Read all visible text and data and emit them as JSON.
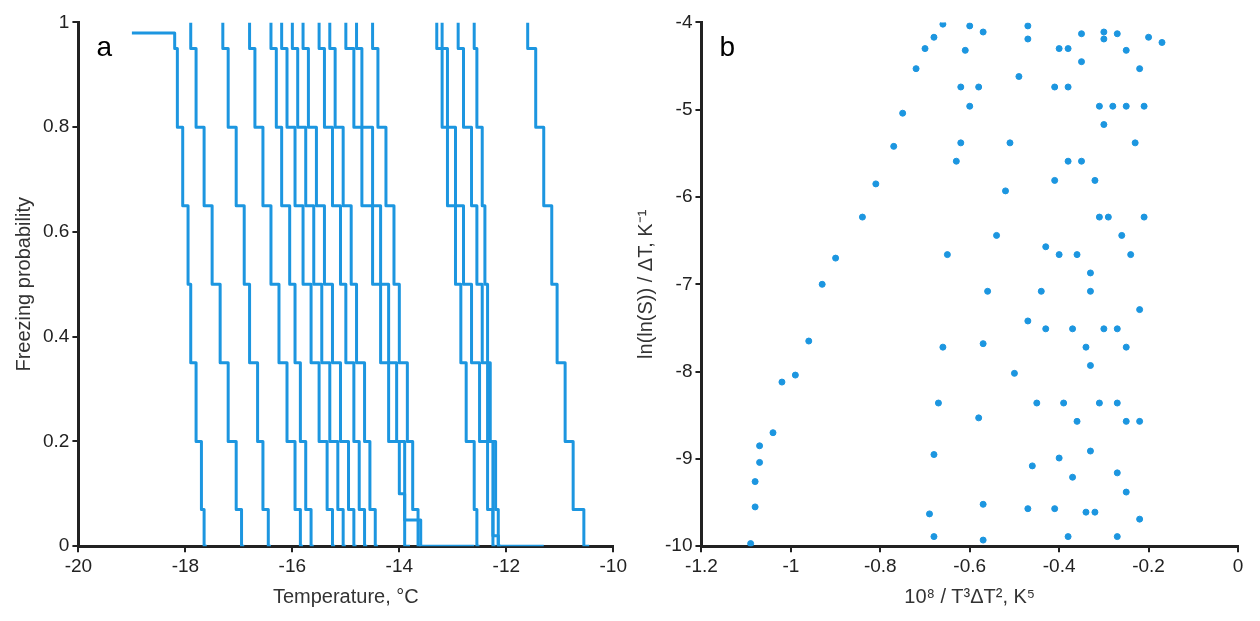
{
  "chart_data": [
    {
      "type": "step",
      "xlabel": "Temperature, °C",
      "ylabel": "Freezing probability",
      "annotations": [
        "a"
      ],
      "xlim": [
        -20,
        -10
      ],
      "xticks": [
        -20,
        -18,
        -16,
        -14,
        -12,
        -10
      ],
      "ylim": [
        0,
        1
      ],
      "yticks": [
        0,
        0.2,
        0.4,
        0.6,
        0.8,
        1
      ],
      "series": [
        {
          "color": "#1c96e0",
          "x": [
            -19,
            -18.2,
            -18.15,
            -18.05,
            -17.95,
            -17.9,
            -17.8,
            -17.7,
            -17.65,
            -17.6
          ],
          "values": [
            0.98,
            0.98,
            0.95,
            0.8,
            0.65,
            0.5,
            0.35,
            0.2,
            0.07,
            0
          ]
        },
        {
          "color": "#1c96e0",
          "x": [
            -17.9,
            -17.8,
            -17.65,
            -17.5,
            -17.35,
            -17.2,
            -17.05,
            -16.95,
            -16.9
          ],
          "values": [
            1,
            0.95,
            0.8,
            0.65,
            0.5,
            0.35,
            0.2,
            0.07,
            0
          ]
        },
        {
          "color": "#1c96e0",
          "x": [
            -17.3,
            -17.2,
            -17.05,
            -16.9,
            -16.8,
            -16.65,
            -16.55,
            -16.45,
            -16.4
          ],
          "values": [
            1,
            0.95,
            0.8,
            0.65,
            0.5,
            0.35,
            0.2,
            0.07,
            0
          ]
        },
        {
          "color": "#1c96e0",
          "x": [
            -16.8,
            -16.7,
            -16.55,
            -16.4,
            -16.25,
            -16.1,
            -15.95,
            -15.85,
            -15.8
          ],
          "values": [
            1,
            0.95,
            0.8,
            0.65,
            0.5,
            0.35,
            0.2,
            0.07,
            0
          ]
        },
        {
          "color": "#1c96e0",
          "x": [
            -16.4,
            -16.3,
            -16.2,
            -16.05,
            -15.95,
            -15.85,
            -15.75,
            -15.65,
            -15.6
          ],
          "values": [
            1,
            0.95,
            0.8,
            0.65,
            0.5,
            0.35,
            0.2,
            0.07,
            0
          ]
        },
        {
          "color": "#1c96e0",
          "x": [
            -16.2,
            -16.1,
            -15.95,
            -15.8,
            -15.65,
            -15.5,
            -15.35,
            -15.25,
            -15.2
          ],
          "values": [
            1,
            0.95,
            0.8,
            0.65,
            0.5,
            0.35,
            0.2,
            0.07,
            0
          ]
        },
        {
          "color": "#1c96e0",
          "x": [
            -16.0,
            -15.9,
            -15.75,
            -15.6,
            -15.45,
            -15.3,
            -15.15,
            -15.05,
            -15.0
          ],
          "values": [
            1,
            0.95,
            0.8,
            0.65,
            0.5,
            0.35,
            0.2,
            0.07,
            0
          ]
        },
        {
          "color": "#1c96e0",
          "x": [
            -15.8,
            -15.7,
            -15.55,
            -15.4,
            -15.25,
            -15.1,
            -14.95,
            -14.85,
            -14.8
          ],
          "values": [
            1,
            0.95,
            0.8,
            0.65,
            0.5,
            0.35,
            0.2,
            0.07,
            0
          ]
        },
        {
          "color": "#1c96e0",
          "x": [
            -15.5,
            -15.4,
            -15.25,
            -15.1,
            -15.0,
            -14.85,
            -14.75,
            -14.65,
            -14.6
          ],
          "values": [
            1,
            0.95,
            0.8,
            0.65,
            0.5,
            0.35,
            0.2,
            0.07,
            0
          ]
        },
        {
          "color": "#1c96e0",
          "x": [
            -15.3,
            -15.2,
            -15.05,
            -14.9,
            -14.8,
            -14.65,
            -14.55,
            -14.45,
            -14.4
          ],
          "values": [
            1,
            0.95,
            0.8,
            0.65,
            0.5,
            0.35,
            0.2,
            0.07,
            0
          ]
        },
        {
          "color": "#1c96e0",
          "x": [
            -15.0,
            -14.85,
            -14.7,
            -14.5,
            -14.35,
            -14.2,
            -14.0,
            -13.9,
            -13.8
          ],
          "values": [
            1,
            0.95,
            0.8,
            0.65,
            0.5,
            0.35,
            0.2,
            0.1,
            0
          ]
        },
        {
          "color": "#1c96e0",
          "x": [
            -14.8,
            -14.7,
            -14.5,
            -14.35,
            -14.2,
            -14.05,
            -13.9,
            -13.6,
            -12.6
          ],
          "values": [
            1,
            0.95,
            0.8,
            0.65,
            0.5,
            0.35,
            0.2,
            0.05,
            0
          ]
        },
        {
          "color": "#1c96e0",
          "x": [
            -14.5,
            -14.4,
            -14.25,
            -14.1,
            -14.0,
            -13.85,
            -13.75,
            -13.65,
            -13.6
          ],
          "values": [
            1,
            0.95,
            0.8,
            0.65,
            0.5,
            0.35,
            0.2,
            0.07,
            0
          ]
        },
        {
          "color": "#1c96e0",
          "x": [
            -13.3,
            -13.2,
            -13.1,
            -12.95,
            -12.85,
            -12.75,
            -12.6,
            -12.55,
            -12.5
          ],
          "values": [
            1,
            0.95,
            0.8,
            0.65,
            0.5,
            0.35,
            0.2,
            0.07,
            0
          ]
        },
        {
          "color": "#1c96e0",
          "x": [
            -13.2,
            -13.1,
            -12.95,
            -12.8,
            -12.65,
            -12.5,
            -12.35,
            -12.25,
            -12.2
          ],
          "values": [
            1,
            0.95,
            0.8,
            0.65,
            0.5,
            0.35,
            0.2,
            0.07,
            0
          ]
        },
        {
          "color": "#1c96e0",
          "x": [
            -12.9,
            -12.8,
            -12.65,
            -12.55,
            -12.45,
            -12.35,
            -12.25,
            -12.15,
            -11.3
          ],
          "values": [
            1,
            0.95,
            0.8,
            0.65,
            0.5,
            0.35,
            0.2,
            0.02,
            0
          ]
        },
        {
          "color": "#1c96e0",
          "x": [
            -12.6,
            -12.55,
            -12.45,
            -12.4,
            -12.35,
            -12.3,
            -12.2,
            -12.15,
            -12.1
          ],
          "values": [
            1,
            0.95,
            0.8,
            0.65,
            0.5,
            0.35,
            0.2,
            0.07,
            0
          ]
        },
        {
          "color": "#1c96e0",
          "x": [
            -11.6,
            -11.45,
            -11.3,
            -11.15,
            -11.05,
            -10.9,
            -10.75,
            -10.55,
            -10.45
          ],
          "values": [
            1,
            0.95,
            0.8,
            0.65,
            0.5,
            0.35,
            0.2,
            0.07,
            0
          ]
        }
      ]
    },
    {
      "type": "scatter",
      "marker": "circle",
      "xlabel": "10⁸ / T³ΔT², K⁵",
      "ylabel": "ln(ln(S)) / ΔT, K⁻¹",
      "annotations": [
        "b"
      ],
      "xlim": [
        -1.2,
        0
      ],
      "xticks": [
        -1.2,
        -1,
        -0.8,
        -0.6,
        -0.4,
        -0.2,
        0
      ],
      "ylim": [
        -10,
        -4
      ],
      "yticks": [
        -10,
        -9,
        -8,
        -7,
        -6,
        -5,
        -4
      ],
      "series": [
        {
          "color": "#1c96e0",
          "x": [
            -1.09,
            -1.08,
            -1.08,
            -1.07,
            -1.07,
            -1.04,
            -1.02,
            -0.99,
            -0.96,
            -0.93,
            -0.9,
            -0.84,
            -0.81,
            -0.77,
            -0.75,
            -0.72,
            -0.7,
            -0.68,
            -0.66
          ],
          "values": [
            -9.97,
            -9.55,
            -9.26,
            -9.04,
            -8.85,
            -8.7,
            -8.12,
            -8.04,
            -7.65,
            -7.0,
            -6.7,
            -6.23,
            -5.85,
            -5.42,
            -5.04,
            -4.53,
            -4.3,
            -4.17,
            -4.02
          ]
        },
        {
          "color": "#1c96e0",
          "x": [
            -0.68,
            -0.69,
            -0.68,
            -0.67,
            -0.66,
            -0.65,
            -0.63,
            -0.62,
            -0.61,
            -0.6
          ],
          "values": [
            -9.89,
            -9.63,
            -8.95,
            -8.36,
            -7.72,
            -6.66,
            -5.59,
            -4.74,
            -4.32,
            -4.04
          ]
        },
        {
          "color": "#1c96e0",
          "x": [
            -0.62,
            -0.6,
            -0.58,
            -0.57
          ],
          "values": [
            -5.38,
            -4.96,
            -4.74,
            -4.11
          ]
        },
        {
          "color": "#1c96e0",
          "x": [
            -0.57,
            -0.57,
            -0.58,
            -0.57,
            -0.56,
            -0.54,
            -0.52,
            -0.51,
            -0.49,
            -0.47,
            -0.47
          ],
          "values": [
            -9.93,
            -9.52,
            -8.53,
            -7.68,
            -7.08,
            -6.44,
            -5.93,
            -5.38,
            -4.62,
            -4.19,
            -4.04
          ]
        },
        {
          "color": "#1c96e0",
          "x": [
            -0.5,
            -0.47,
            -0.44,
            -0.43,
            -0.41,
            -0.41,
            -0.4
          ],
          "values": [
            -8.02,
            -7.42,
            -7.08,
            -6.57,
            -5.81,
            -4.74,
            -4.3
          ]
        },
        {
          "color": "#1c96e0",
          "x": [
            -0.47,
            -0.46,
            -0.45,
            -0.43,
            -0.4,
            -0.38,
            -0.38,
            -0.38
          ],
          "values": [
            -9.57,
            -9.08,
            -8.36,
            -7.51,
            -6.66,
            -5.59,
            -4.74,
            -4.3
          ]
        },
        {
          "color": "#1c96e0",
          "x": [
            -0.41,
            -0.4,
            -0.39,
            -0.37,
            -0.36,
            -0.35,
            -0.35,
            -0.35
          ],
          "values": [
            -9.57,
            -8.99,
            -8.36,
            -7.51,
            -6.66,
            -5.59,
            -4.45,
            -4.13
          ]
        },
        {
          "color": "#1c96e0",
          "x": [
            -0.38,
            -0.37,
            -0.36,
            -0.34,
            -0.33,
            -0.32,
            -0.31,
            -0.3
          ],
          "values": [
            -9.89,
            -9.21,
            -8.57,
            -7.72,
            -6.87,
            -5.81,
            -4.96,
            -4.19
          ]
        },
        {
          "color": "#1c96e0",
          "x": [
            -0.34,
            -0.33,
            -0.33,
            -0.33,
            -0.31,
            -0.3,
            -0.3
          ],
          "values": [
            -9.61,
            -8.91,
            -7.93,
            -7.08,
            -6.23,
            -5.17,
            -4.11
          ]
        },
        {
          "color": "#1c96e0",
          "x": [
            -0.32,
            -0.31,
            -0.3,
            -0.29,
            -0.28,
            -0.27
          ],
          "values": [
            -9.61,
            -8.36,
            -7.51,
            -6.23,
            -4.96,
            -4.13
          ]
        },
        {
          "color": "#1c96e0",
          "x": [
            -0.27,
            -0.27,
            -0.27,
            -0.27,
            -0.26,
            -0.25,
            -0.25
          ],
          "values": [
            -9.89,
            -9.16,
            -8.36,
            -7.51,
            -6.44,
            -4.96,
            -4.32
          ]
        },
        {
          "color": "#1c96e0",
          "x": [
            -0.25,
            -0.25,
            -0.25,
            -0.24,
            -0.23,
            -0.22
          ],
          "values": [
            -9.38,
            -8.57,
            -7.72,
            -6.66,
            -5.38,
            -4.53
          ]
        },
        {
          "color": "#1c96e0",
          "x": [
            -0.22,
            -0.22,
            -0.22,
            -0.21,
            -0.21,
            -0.2,
            -0.17
          ],
          "values": [
            -9.69,
            -8.57,
            -7.29,
            -6.23,
            -4.96,
            -4.17,
            -4.23
          ]
        }
      ]
    }
  ]
}
